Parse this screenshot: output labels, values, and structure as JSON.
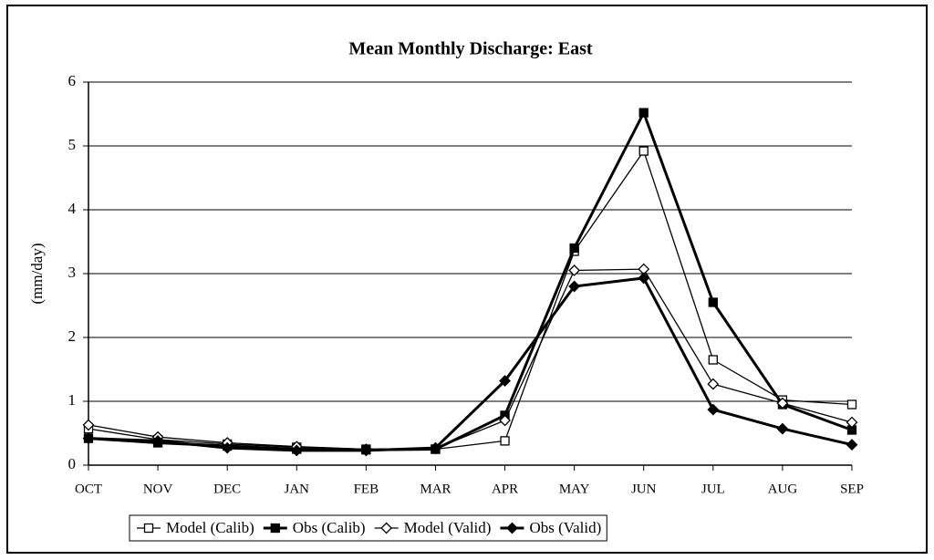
{
  "chart_data": {
    "type": "line",
    "title": "Mean Monthly Discharge: East",
    "y_label": "(mm/day)",
    "categories": [
      "OCT",
      "NOV",
      "DEC",
      "JAN",
      "FEB",
      "MAR",
      "APR",
      "MAY",
      "JUN",
      "JUL",
      "AUG",
      "SEP"
    ],
    "ylim": [
      0,
      6
    ],
    "yticks": [
      0,
      1,
      2,
      3,
      4,
      5,
      6
    ],
    "grid": true,
    "legend": "bottom",
    "series": [
      {
        "name": "Model (Calib)",
        "color": "#000000",
        "marker": "square",
        "filled": false,
        "values": [
          0.57,
          0.4,
          0.33,
          0.28,
          0.25,
          0.25,
          0.38,
          3.35,
          4.92,
          1.65,
          1.02,
          0.95
        ]
      },
      {
        "name": "Obs (Calib)",
        "color": "#000000",
        "marker": "square",
        "filled": true,
        "values": [
          0.42,
          0.35,
          0.3,
          0.25,
          0.24,
          0.25,
          0.78,
          3.4,
          5.52,
          2.55,
          0.95,
          0.55
        ]
      },
      {
        "name": "Model (Valid)",
        "color": "#000000",
        "marker": "diamond",
        "filled": false,
        "values": [
          0.63,
          0.44,
          0.35,
          0.29,
          0.25,
          0.26,
          0.7,
          3.05,
          3.07,
          1.27,
          0.97,
          0.67
        ]
      },
      {
        "name": "Obs (Valid)",
        "color": "#000000",
        "marker": "diamond",
        "filled": true,
        "values": [
          0.42,
          0.38,
          0.27,
          0.23,
          0.23,
          0.27,
          1.32,
          2.8,
          2.93,
          0.87,
          0.57,
          0.32
        ]
      }
    ]
  }
}
